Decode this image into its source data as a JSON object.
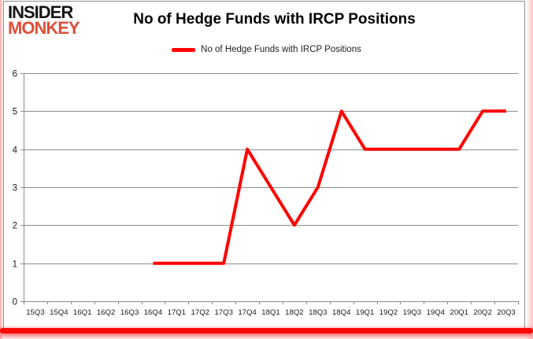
{
  "brand": {
    "line1": "INSIDER",
    "line2": "MONKEY",
    "accent_color": "#dd4f38"
  },
  "chart_data": {
    "type": "line",
    "title": "No of Hedge Funds with IRCP Positions",
    "categories": [
      "15Q3",
      "15Q4",
      "16Q1",
      "16Q2",
      "16Q3",
      "16Q4",
      "17Q1",
      "17Q2",
      "17Q3",
      "17Q4",
      "18Q1",
      "18Q2",
      "18Q3",
      "18Q4",
      "19Q1",
      "19Q2",
      "19Q3",
      "19Q4",
      "20Q1",
      "20Q2",
      "20Q3"
    ],
    "series": [
      {
        "name": "No of Hedge Funds with IRCP Positions",
        "color": "#ff0000",
        "values": [
          null,
          null,
          null,
          null,
          null,
          1,
          1,
          1,
          1,
          4,
          3,
          2,
          3,
          5,
          4,
          4,
          4,
          4,
          4,
          5,
          5
        ]
      }
    ],
    "xlabel": "",
    "ylabel": "",
    "ylim": [
      0,
      6
    ],
    "yticks": [
      0,
      1,
      2,
      3,
      4,
      5,
      6
    ],
    "grid": true,
    "gridcolor": "#8c8c8c",
    "label_color": "#1a1a1a",
    "legend_position": "top-center"
  }
}
